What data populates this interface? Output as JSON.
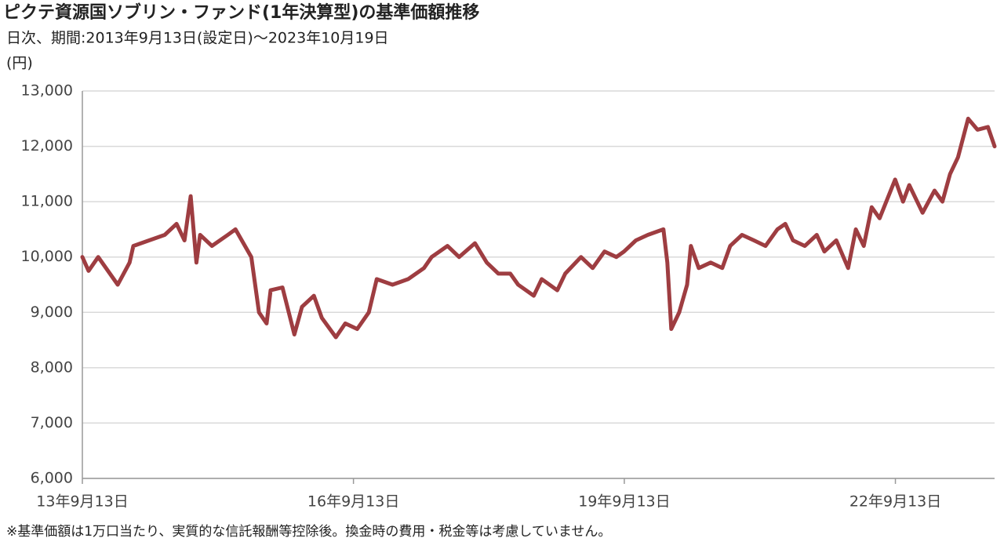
{
  "chart_data": {
    "type": "line",
    "title": "ピクテ資源国ソブリン・ファンド(1年決算型)の基準価額推移",
    "subtitle": "日次、期間:2013年9月13日(設定日)～2023年10月19日",
    "y_label": "(円)",
    "footnote": "※基準価額は1万口当たり、実質的な信託報酬等控除後。換金時の費用・税金等は考慮していません。",
    "x": [
      "2013-09-13",
      "2013-10-08",
      "2013-11-16",
      "2014-02-03",
      "2014-03-23",
      "2014-04-07",
      "2014-06-10",
      "2014-08-12",
      "2014-09-29",
      "2014-10-31",
      "2014-11-25",
      "2014-12-18",
      "2015-01-02",
      "2015-02-19",
      "2015-04-24",
      "2015-05-25",
      "2015-07-28",
      "2015-08-28",
      "2015-09-28",
      "2015-10-14",
      "2015-12-01",
      "2016-01-18",
      "2016-02-18",
      "2016-04-06",
      "2016-05-08",
      "2016-07-04",
      "2016-08-11",
      "2016-09-28",
      "2016-11-14",
      "2016-12-16",
      "2017-02-18",
      "2017-04-22",
      "2017-06-25",
      "2017-07-26",
      "2017-09-28",
      "2017-11-14",
      "2018-01-17",
      "2018-03-06",
      "2018-04-22",
      "2018-06-09",
      "2018-07-11",
      "2018-09-12",
      "2018-10-14",
      "2018-12-16",
      "2019-01-17",
      "2019-03-22",
      "2019-05-08",
      "2019-06-25",
      "2019-08-12",
      "2019-09-12",
      "2019-10-30",
      "2019-12-17",
      "2020-02-18",
      "2020-03-05",
      "2020-03-21",
      "2020-04-22",
      "2020-05-24",
      "2020-06-08",
      "2020-07-10",
      "2020-08-27",
      "2020-10-13",
      "2020-11-14",
      "2021-01-01",
      "2021-02-18",
      "2021-04-06",
      "2021-05-24",
      "2021-06-25",
      "2021-07-26",
      "2021-09-12",
      "2021-10-30",
      "2021-11-30",
      "2022-01-17",
      "2022-03-06",
      "2022-04-06",
      "2022-05-08",
      "2022-06-09",
      "2022-07-11",
      "2022-09-12",
      "2022-10-14",
      "2022-11-08",
      "2023-01-01",
      "2023-02-18",
      "2023-03-22",
      "2023-04-22",
      "2023-05-24",
      "2023-07-04",
      "2023-08-11",
      "2023-09-22",
      "2023-10-19"
    ],
    "series": [
      {
        "name": "基準価額",
        "color": "#9e3d41",
        "values": [
          10000,
          9750,
          10000,
          9500,
          9900,
          10200,
          10300,
          10400,
          10600,
          10300,
          11100,
          9900,
          10400,
          10200,
          10400,
          10500,
          10000,
          9000,
          8800,
          9400,
          9450,
          8600,
          9100,
          9300,
          8900,
          8550,
          8800,
          8700,
          9000,
          9600,
          9500,
          9600,
          9800,
          10000,
          10200,
          10000,
          10250,
          9900,
          9700,
          9700,
          9500,
          9300,
          9600,
          9400,
          9700,
          10000,
          9800,
          10100,
          10000,
          10100,
          10300,
          10400,
          10500,
          9900,
          8700,
          9000,
          9500,
          10200,
          9800,
          9900,
          9800,
          10200,
          10400,
          10300,
          10200,
          10500,
          10600,
          10300,
          10200,
          10400,
          10100,
          10300,
          9800,
          10500,
          10200,
          10900,
          10700,
          11400,
          11000,
          11300,
          10800,
          11200,
          11000,
          11500,
          11800,
          12500,
          12300,
          12350,
          12000
        ]
      }
    ],
    "xlim": [
      "2013-09-13",
      "2023-10-19"
    ],
    "xticks": [
      {
        "value": "2013-09-13",
        "label": "13年9月13日"
      },
      {
        "value": "2016-09-13",
        "label": "16年9月13日"
      },
      {
        "value": "2019-09-13",
        "label": "19年9月13日"
      },
      {
        "value": "2022-09-13",
        "label": "22年9月13日"
      }
    ],
    "ylim": [
      6000,
      13000
    ],
    "yticks": [
      {
        "value": 6000,
        "label": "6,000"
      },
      {
        "value": 7000,
        "label": "7,000"
      },
      {
        "value": 8000,
        "label": "8,000"
      },
      {
        "value": 9000,
        "label": "9,000"
      },
      {
        "value": 10000,
        "label": "10,000"
      },
      {
        "value": 11000,
        "label": "11,000"
      },
      {
        "value": 12000,
        "label": "12,000"
      },
      {
        "value": 13000,
        "label": "13,000"
      }
    ],
    "grid": true
  }
}
